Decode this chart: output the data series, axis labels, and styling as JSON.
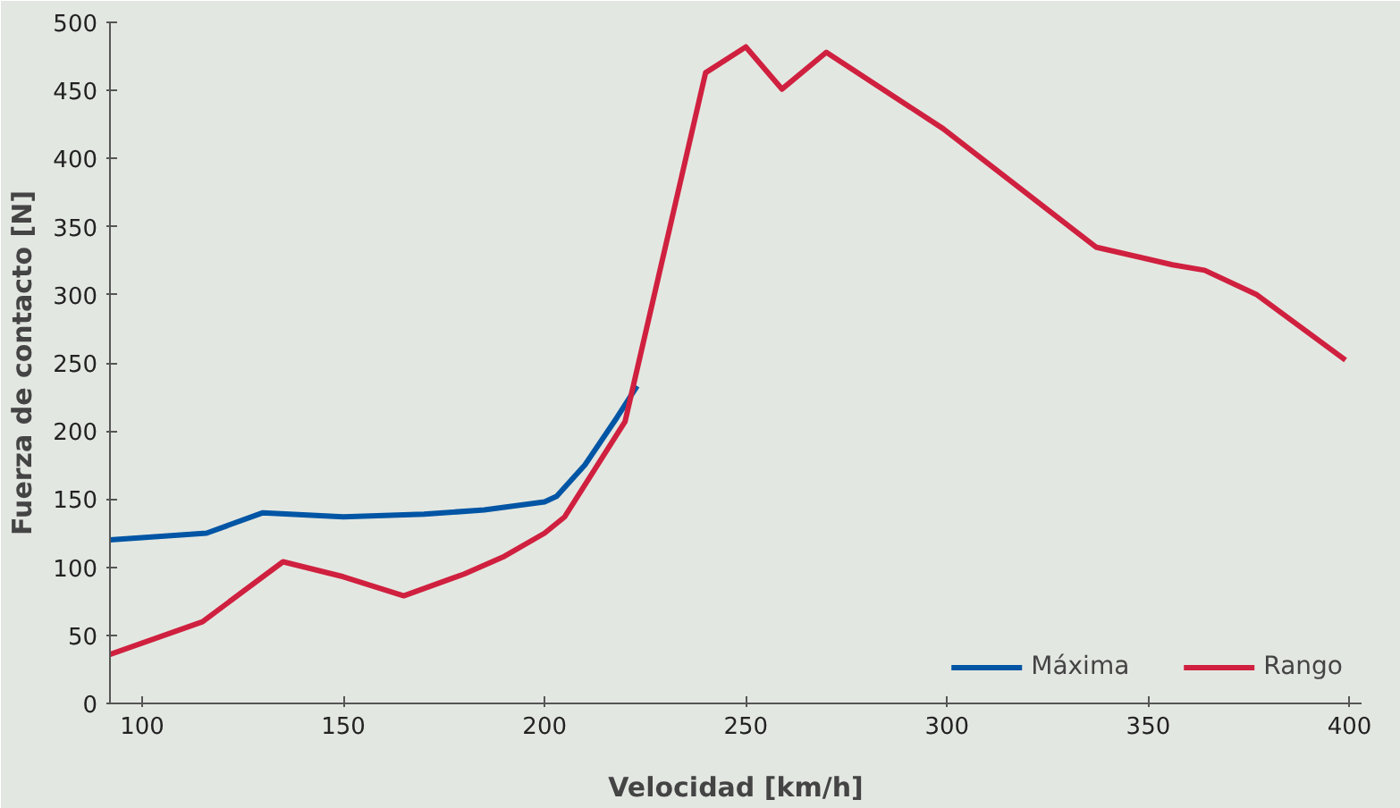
{
  "chart_data": {
    "type": "line",
    "xlabel": "Velocidad [km/h]",
    "ylabel": "Fuerza de contacto [N]",
    "xlim": [
      92,
      403
    ],
    "xticks": [
      100,
      150,
      200,
      250,
      300,
      350,
      400
    ],
    "ylim": [
      0,
      500
    ],
    "yticks": [
      0,
      50,
      100,
      150,
      200,
      250,
      300,
      350,
      400,
      450,
      500
    ],
    "legend": "bottom right",
    "series": [
      {
        "name": "Máxima",
        "color": "#0055a5",
        "x": [
          92,
          116,
          130,
          150,
          170,
          185,
          200,
          203,
          210,
          218,
          223
        ],
        "values": [
          120,
          125,
          140,
          137,
          139,
          142,
          148,
          152,
          175,
          210,
          233
        ]
      },
      {
        "name": "Rango",
        "color": "#d0203f",
        "x": [
          92,
          115,
          135,
          150,
          165,
          180,
          190,
          200,
          205,
          220,
          240,
          250,
          259,
          270,
          299,
          337,
          356,
          364,
          377,
          399
        ],
        "values": [
          36,
          60,
          104,
          93,
          79,
          95,
          108,
          125,
          137,
          207,
          463,
          482,
          451,
          478,
          422,
          335,
          322,
          318,
          300,
          252
        ]
      }
    ]
  }
}
